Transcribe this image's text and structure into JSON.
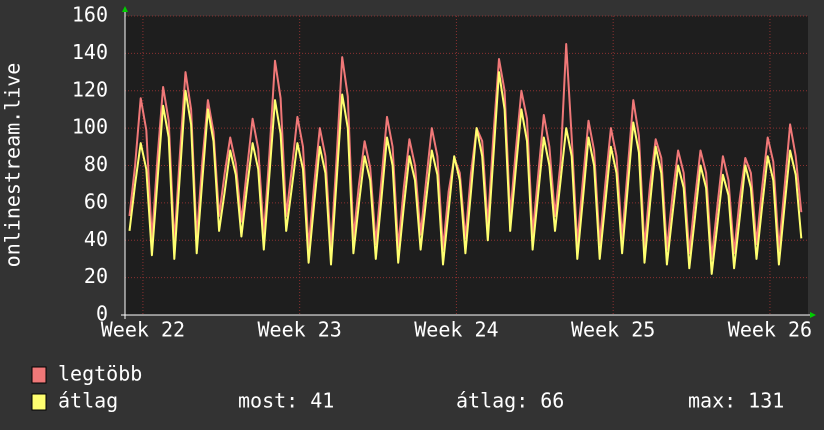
{
  "chart_data": {
    "type": "line",
    "ylabel": "onlinestream.live",
    "x": [
      -0.6,
      -0.35,
      -0.1,
      0.15,
      0.4,
      0.65,
      0.9,
      1.15,
      1.4,
      1.65,
      1.9,
      2.15,
      2.4,
      2.65,
      2.9,
      3.15,
      3.4,
      3.65,
      3.9,
      4.15,
      4.4,
      4.65,
      4.9,
      5.15,
      5.4,
      5.65,
      5.9,
      6.15,
      6.4,
      6.65,
      6.9,
      7.15,
      7.4,
      7.65,
      7.9,
      8.15,
      8.4,
      8.65,
      8.9,
      9.15,
      9.4,
      9.65,
      9.9,
      10.15,
      10.4,
      10.65,
      10.9,
      11.15,
      11.4,
      11.65,
      11.9,
      12.15,
      12.4,
      12.65,
      12.9,
      13.15,
      13.4,
      13.65,
      13.9,
      14.15,
      14.4,
      14.65,
      14.9,
      15.15,
      15.4,
      15.65,
      15.9,
      16.15,
      16.4,
      16.65,
      16.9,
      17.15,
      17.4,
      17.65,
      17.9,
      18.15,
      18.4,
      18.65,
      18.9,
      19.15,
      19.4,
      19.65,
      19.9,
      20.15,
      20.4,
      20.65,
      20.9,
      21.15,
      21.4,
      21.65,
      21.9,
      22.15,
      22.4,
      22.65,
      22.9,
      23.15,
      23.4,
      23.65,
      23.9,
      24.15,
      24.4,
      24.65,
      24.9,
      25.15,
      25.4,
      25.65,
      25.9,
      26.15,
      26.4,
      26.65,
      26.9,
      27.15,
      27.4,
      27.65,
      27.9,
      28.15,
      28.4,
      28.65,
      28.9,
      29.15,
      29.4
    ],
    "series": [
      {
        "name": "legtöbb",
        "color": "#f07878",
        "values": [
          53,
          80,
          116,
          99,
          40,
          84,
          122,
          104,
          38,
          86,
          130,
          110,
          41,
          82,
          115,
          98,
          53,
          76,
          95,
          81,
          50,
          78,
          105,
          89,
          43,
          86,
          136,
          116,
          53,
          78,
          106,
          90,
          36,
          70,
          100,
          85,
          35,
          84,
          138,
          117,
          41,
          70,
          93,
          79,
          38,
          72,
          106,
          90,
          36,
          68,
          94,
          80,
          43,
          72,
          100,
          85,
          35,
          66,
          84,
          76,
          41,
          76,
          100,
          93,
          48,
          96,
          137,
          120,
          53,
          88,
          120,
          105,
          43,
          75,
          107,
          90,
          53,
          82,
          145,
          95,
          38,
          72,
          104,
          88,
          38,
          70,
          100,
          85,
          41,
          78,
          115,
          96,
          36,
          70,
          94,
          84,
          35,
          64,
          88,
          76,
          33,
          62,
          88,
          76,
          30,
          58,
          85,
          72,
          33,
          62,
          84,
          76,
          38,
          68,
          95,
          82,
          35,
          68,
          102,
          85,
          55
        ]
      },
      {
        "name": "átlag",
        "color": "#ffff70",
        "values": [
          45,
          70,
          92,
          78,
          32,
          72,
          112,
          95,
          30,
          75,
          120,
          102,
          33,
          72,
          110,
          93,
          45,
          66,
          88,
          75,
          42,
          68,
          92,
          78,
          35,
          75,
          115,
          97,
          45,
          68,
          92,
          78,
          28,
          60,
          90,
          76,
          27,
          72,
          118,
          100,
          33,
          60,
          85,
          72,
          30,
          62,
          95,
          80,
          28,
          58,
          85,
          72,
          35,
          62,
          88,
          75,
          27,
          56,
          85,
          72,
          33,
          66,
          100,
          85,
          40,
          85,
          130,
          110,
          45,
          78,
          110,
          93,
          35,
          65,
          95,
          80,
          45,
          72,
          100,
          85,
          30,
          62,
          95,
          80,
          30,
          60,
          90,
          76,
          33,
          68,
          103,
          87,
          28,
          60,
          90,
          76,
          27,
          54,
          80,
          68,
          25,
          52,
          80,
          68,
          22,
          48,
          75,
          64,
          25,
          52,
          80,
          68,
          30,
          58,
          85,
          72,
          27,
          58,
          88,
          75,
          41
        ]
      }
    ],
    "xlim": [
      -0.8,
      29.7
    ],
    "xticks": [
      {
        "value": 0,
        "label": "Week 22"
      },
      {
        "value": 7,
        "label": "Week 23"
      },
      {
        "value": 14,
        "label": "Week 24"
      },
      {
        "value": 21,
        "label": "Week 25"
      },
      {
        "value": 28,
        "label": "Week 26"
      }
    ],
    "ylim": [
      0,
      160
    ],
    "yticks": [
      0,
      20,
      40,
      60,
      80,
      100,
      120,
      140,
      160
    ],
    "grid": true,
    "stats": [
      {
        "label": "most:",
        "value": 41
      },
      {
        "label": "átlag:",
        "value": 66
      },
      {
        "label": "max:",
        "value": 131
      }
    ]
  }
}
